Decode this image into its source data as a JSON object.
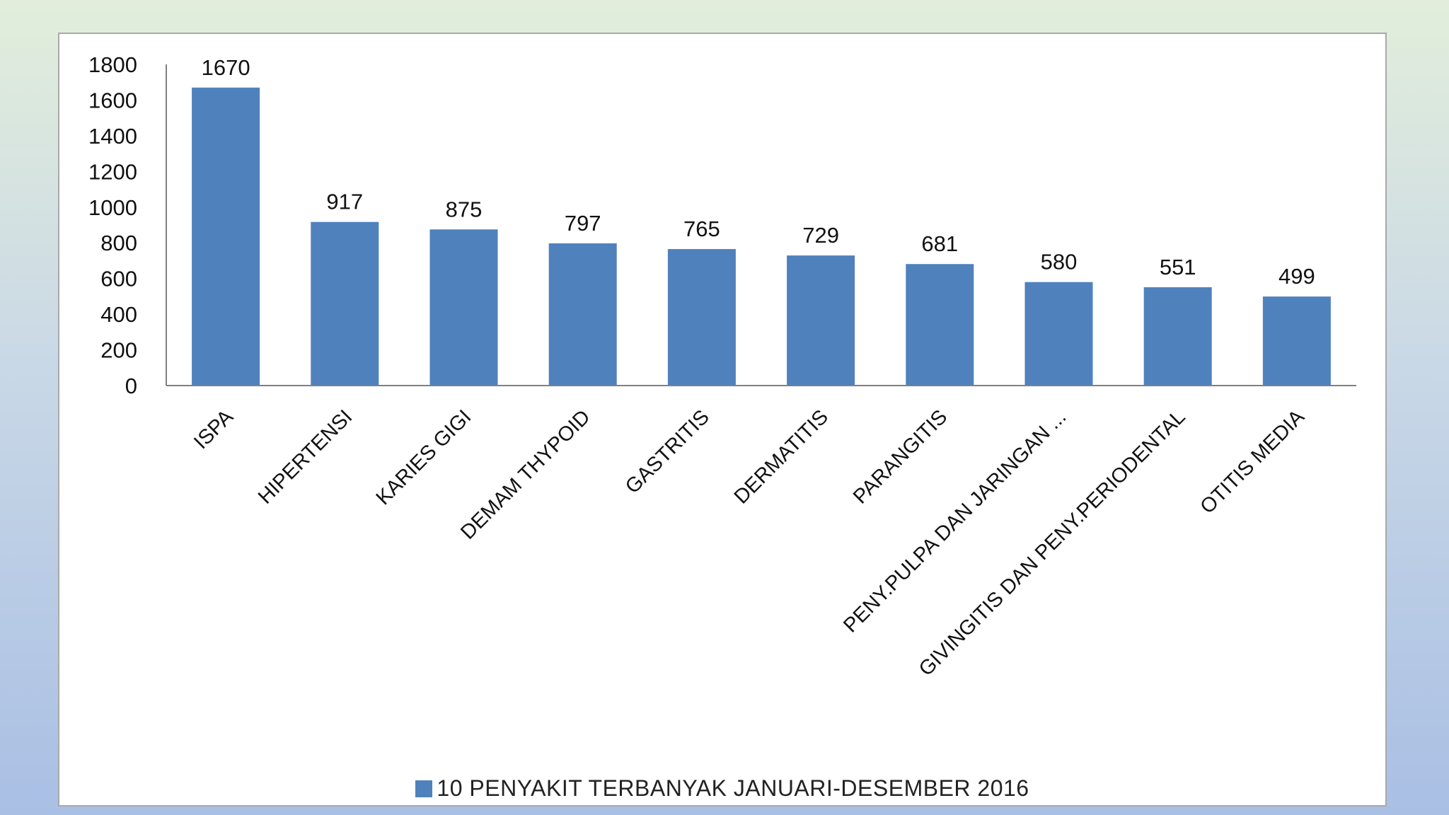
{
  "chart_data": {
    "type": "bar",
    "categories": [
      "ISPA",
      "HIPERTENSI",
      "KARIES GIGI",
      "DEMAM THYPOID",
      "GASTRITIS",
      "DERMATITIS",
      "PARANGITIS",
      "PENY.PULPA DAN JARINGAN ...",
      "GIVINGITIS  DAN PENY.PERIODENTAL",
      "OTITIS MEDIA"
    ],
    "series": [
      {
        "name": "10 PENYAKIT  TERBANYAK  JANUARI-DESEMBER  2016",
        "values": [
          1670,
          917,
          875,
          797,
          765,
          729,
          681,
          580,
          551,
          499
        ]
      }
    ],
    "y_ticks": [
      "0",
      "200",
      "400",
      "600",
      "800",
      "1000",
      "1200",
      "1400",
      "1600",
      "1800"
    ],
    "ylim": [
      0,
      1800
    ],
    "grid": false,
    "data_labels": true,
    "legend_position": "bottom",
    "bar_color": "#4f81bd"
  }
}
